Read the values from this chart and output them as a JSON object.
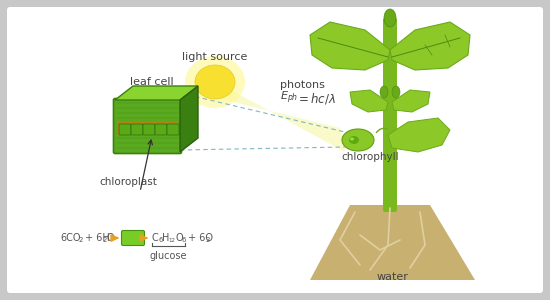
{
  "bg_color": "#c8c8c8",
  "panel_color": "#ffffff",
  "sun_yellow": "#f5e040",
  "sun_glow": "#fef8a0",
  "beam_color": "#f8f8c0",
  "leaf_green": "#8cc828",
  "leaf_mid": "#6aaa18",
  "leaf_dark": "#4a8c10",
  "stem_green": "#7ab820",
  "root_tan": "#c8b070",
  "root_line": "#a89050",
  "cell_front": "#5aaa20",
  "cell_top": "#8ad430",
  "cell_right": "#3a8010",
  "cell_band": "#c09020",
  "chloro_green": "#8ac828",
  "chloro_dot": "#5aaa10",
  "arrow_orange": "#e8a020",
  "dashed_blue": "#80b8c0",
  "text_color": "#444444",
  "eq_color": "#555555",
  "light_source_label": "light source",
  "photons_label": "photons",
  "leaf_cell_label": "leaf cell",
  "chloroplast_label": "chloroplast",
  "chlorophyll_label": "chlorophyll",
  "water_label": "water",
  "glucose_label": "glucose"
}
